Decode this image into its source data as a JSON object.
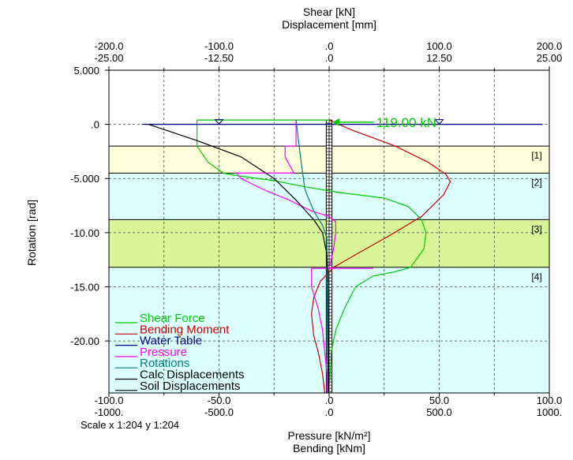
{
  "chart_data": {
    "type": "line",
    "top_axis_titles": [
      "Shear [kN]",
      "Displacement [mm]"
    ],
    "bottom_axis_titles": [
      "Pressure [kN/m²]",
      "Bending [kNm]"
    ],
    "ylabel": "Rotation [rad]",
    "scale_text": "Scale x 1:204  y 1:204",
    "top_ticks_row1": [
      "-200.0",
      "-100.0",
      ".0",
      "100.0",
      "200.0"
    ],
    "top_ticks_row2": [
      "-25.00",
      "-12.50",
      ".0",
      "12.50",
      "25.00"
    ],
    "bottom_ticks_row1": [
      "-100.0",
      "-50.0",
      ".0",
      "50.0",
      "100.0"
    ],
    "bottom_ticks_row2": [
      "-1000.",
      "-500.0",
      ".0",
      "500.0",
      "1000."
    ],
    "y_ticks": [
      {
        "value": 5,
        "label": "5.000"
      },
      {
        "value": 0,
        "label": ".0"
      },
      {
        "value": -5,
        "label": "-5.000"
      },
      {
        "value": -10,
        "label": "-10.00"
      },
      {
        "value": -15,
        "label": "-15.00"
      },
      {
        "value": -20,
        "label": "-20.00"
      }
    ],
    "xlim": [
      -100,
      100
    ],
    "ylim": [
      -24.8,
      5
    ],
    "grid": true,
    "legend_position": "bottom-left",
    "soil_layers": [
      {
        "label": "[1]",
        "top": -2.0,
        "bottom": -4.5,
        "color": "#ffffdc"
      },
      {
        "label": "[2]",
        "top": -4.5,
        "bottom": -8.8,
        "color": "#dcffff"
      },
      {
        "label": "[3]",
        "top": -8.8,
        "bottom": -13.2,
        "color": "#d8f598"
      },
      {
        "label": "[4]",
        "top": -13.2,
        "bottom": -24.8,
        "color": "#dcffff"
      }
    ],
    "water_table": {
      "level": 0,
      "x_range": [
        -85,
        97
      ],
      "color": "#000080"
    },
    "annotation": {
      "text": "119.00 kN",
      "level": 0.2,
      "x": 22.5,
      "color": "#00cc00"
    },
    "series": [
      {
        "name": "Shear Force",
        "color": "#00cc00",
        "points": [
          [
            0,
            0.4
          ],
          [
            -60,
            0.4
          ],
          [
            -60,
            -2
          ],
          [
            -55,
            -3.5
          ],
          [
            -48,
            -4.5
          ],
          [
            -43,
            -4.7
          ],
          [
            -25,
            -5.2
          ],
          [
            -10,
            -5.8
          ],
          [
            5,
            -6.3
          ],
          [
            25,
            -6.8
          ],
          [
            36,
            -7.6
          ],
          [
            42,
            -8.8
          ],
          [
            44,
            -10
          ],
          [
            43,
            -11.5
          ],
          [
            37,
            -13.2
          ],
          [
            30,
            -13.6
          ],
          [
            20,
            -14
          ],
          [
            12,
            -15
          ],
          [
            7,
            -17
          ],
          [
            3,
            -19
          ],
          [
            1,
            -21
          ],
          [
            0,
            -24.8
          ]
        ]
      },
      {
        "name": "Bending Moment",
        "color": "#cc0000",
        "points": [
          [
            0,
            0.4
          ],
          [
            10,
            -0.5
          ],
          [
            30,
            -2
          ],
          [
            45,
            -3.5
          ],
          [
            53,
            -4.6
          ],
          [
            55,
            -5.3
          ],
          [
            52,
            -6.5
          ],
          [
            42,
            -8.5
          ],
          [
            28,
            -10.2
          ],
          [
            14,
            -11.8
          ],
          [
            2,
            -13.2
          ],
          [
            -4,
            -14.5
          ],
          [
            -7,
            -16
          ],
          [
            -8,
            -17.5
          ],
          [
            -7,
            -19.5
          ],
          [
            -5,
            -21
          ],
          [
            -3,
            -23
          ],
          [
            -2,
            -24.8
          ]
        ]
      },
      {
        "name": "Water Table",
        "color": "#000080",
        "points": [
          [
            -85,
            0
          ],
          [
            97,
            0
          ]
        ]
      },
      {
        "name": "Pressure",
        "color": "#ff00ff",
        "points": [
          [
            -15,
            0.4
          ],
          [
            -15,
            -2
          ],
          [
            -20,
            -2
          ],
          [
            -20,
            -3
          ],
          [
            -16,
            -4.5
          ],
          [
            -42,
            -4.5
          ],
          [
            -40,
            -5
          ],
          [
            -30,
            -6
          ],
          [
            -18,
            -7
          ],
          [
            -8,
            -8
          ],
          [
            0,
            -8.5
          ],
          [
            3,
            -9
          ],
          [
            3,
            -10
          ],
          [
            2,
            -11.5
          ],
          [
            1,
            -12.5
          ],
          [
            0,
            -13.2
          ],
          [
            3,
            -13.3
          ],
          [
            20,
            -13.3
          ],
          [
            -8,
            -13.3
          ],
          [
            -8,
            -15
          ],
          [
            -5,
            -17
          ],
          [
            -3,
            -19
          ],
          [
            -2,
            -21
          ],
          [
            -1,
            -23
          ],
          [
            -1,
            -24.8
          ]
        ]
      },
      {
        "name": "Rotations",
        "color": "#008080",
        "points": [
          [
            -15,
            0.4
          ],
          [
            -13,
            -3
          ],
          [
            -11,
            -6
          ],
          [
            -7,
            -8
          ],
          [
            -3,
            -9.3
          ],
          [
            -1,
            -10.5
          ],
          [
            -1,
            -14
          ],
          [
            -0.5,
            -24.8
          ]
        ]
      },
      {
        "name": "Calc Displacements",
        "color": "#000000",
        "points": [
          [
            -82,
            0
          ],
          [
            -60,
            -1.5
          ],
          [
            -40,
            -3
          ],
          [
            -25,
            -5
          ],
          [
            -15,
            -7
          ],
          [
            -7,
            -8.8
          ],
          [
            -3,
            -10
          ],
          [
            -1,
            -12
          ],
          [
            -0.5,
            -14
          ],
          [
            -0.3,
            -24.8
          ]
        ]
      },
      {
        "name": "Soil Displacements",
        "color": "#000000",
        "points": []
      }
    ]
  }
}
